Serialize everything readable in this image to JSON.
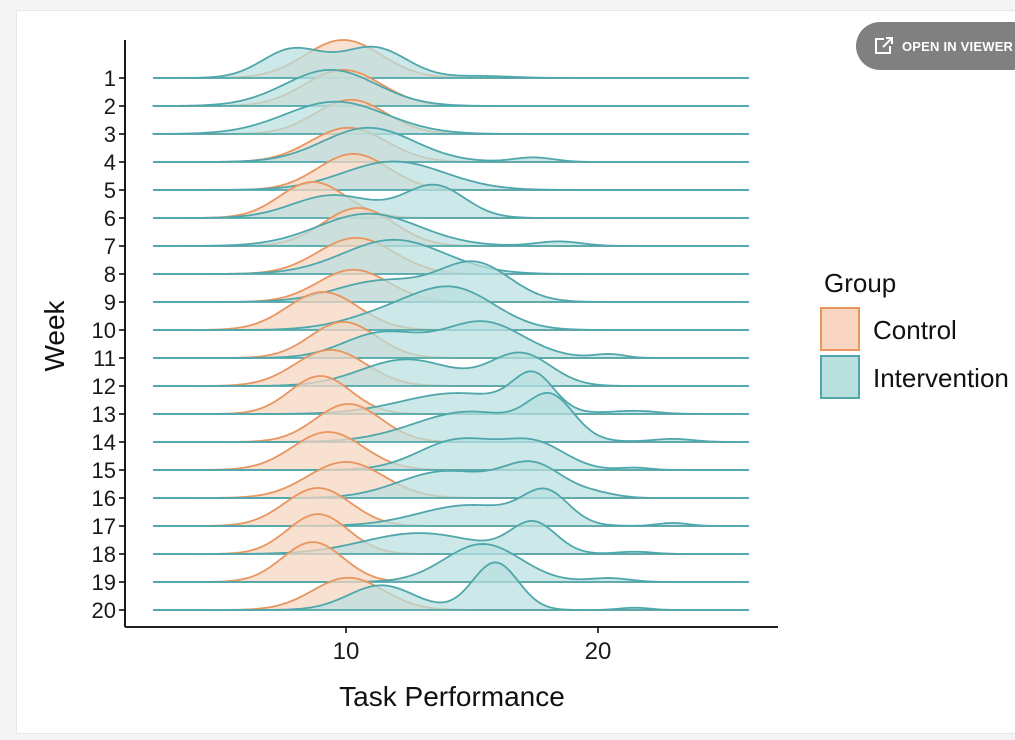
{
  "viewer_button": {
    "label": "OPEN IN VIEWER",
    "icon": "external-link-icon"
  },
  "chart_data": {
    "type": "ridgeline-density",
    "xlabel": "Task Performance",
    "ylabel": "Week",
    "xlim": [
      2.5,
      26
    ],
    "xticks": [
      10,
      20
    ],
    "grid": false,
    "weeks": [
      "1",
      "2",
      "3",
      "4",
      "5",
      "6",
      "7",
      "8",
      "9",
      "10",
      "11",
      "12",
      "13",
      "14",
      "15",
      "16",
      "17",
      "18",
      "19",
      "20"
    ],
    "legend": {
      "title": "Group",
      "position": "right",
      "entries": [
        "Control",
        "Intervention"
      ]
    },
    "colors": {
      "Control": {
        "fill": "#f7d5c0",
        "line": "#e8955f"
      },
      "Intervention": {
        "fill": "#b9dfdf",
        "line": "#4fa7ab"
      }
    },
    "series": [
      {
        "name": "Control",
        "peaks": [
          [
            [
              10,
              1.5,
              1.0
            ]
          ],
          [
            [
              10,
              1.5,
              0.95
            ]
          ],
          [
            [
              10.3,
              1.4,
              0.9
            ]
          ],
          [
            [
              10.2,
              1.5,
              0.9
            ]
          ],
          [
            [
              10.4,
              1.4,
              0.95
            ]
          ],
          [
            [
              8.8,
              1.3,
              0.95
            ]
          ],
          [
            [
              10.6,
              1.4,
              1.0
            ]
          ],
          [
            [
              10.5,
              1.5,
              0.95
            ]
          ],
          [
            [
              10.4,
              1.4,
              0.85
            ]
          ],
          [
            [
              9.2,
              1.4,
              1.0
            ]
          ],
          [
            [
              10,
              1.3,
              0.95
            ]
          ],
          [
            [
              9.5,
              1.4,
              0.95
            ]
          ],
          [
            [
              9.1,
              1.2,
              1.0
            ]
          ],
          [
            [
              10.2,
              1.3,
              1.0
            ]
          ],
          [
            [
              9.4,
              1.4,
              1.0
            ]
          ],
          [
            [
              10.1,
              1.5,
              0.95
            ]
          ],
          [
            [
              9.0,
              1.3,
              1.0
            ]
          ],
          [
            [
              9.0,
              1.2,
              1.05
            ]
          ],
          [
            [
              8.8,
              1.2,
              1.05
            ]
          ],
          [
            [
              10.2,
              1.4,
              0.85
            ]
          ]
        ]
      },
      {
        "name": "Intervention",
        "peaks": [
          [
            [
              8,
              1.2,
              0.75
            ],
            [
              11.2,
              1.3,
              0.8
            ],
            [
              15.5,
              1.2,
              0.05
            ]
          ],
          [
            [
              9.5,
              1.8,
              0.95
            ]
          ],
          [
            [
              9.7,
              2.0,
              0.85
            ]
          ],
          [
            [
              11.0,
              1.8,
              0.9
            ],
            [
              17.5,
              0.8,
              0.12
            ]
          ],
          [
            [
              12.0,
              2.0,
              0.75
            ]
          ],
          [
            [
              9.6,
              1.6,
              0.6
            ],
            [
              13.6,
              1.2,
              0.85
            ]
          ],
          [
            [
              11.0,
              2.0,
              0.85
            ],
            [
              18.5,
              0.9,
              0.12
            ]
          ],
          [
            [
              12.0,
              2.0,
              0.9
            ]
          ],
          [
            [
              11.5,
              1.8,
              0.55
            ],
            [
              15.2,
              1.4,
              1.0
            ]
          ],
          [
            [
              12.0,
              1.8,
              0.45
            ],
            [
              14.5,
              1.6,
              0.95
            ]
          ],
          [
            [
              11.5,
              1.5,
              0.65
            ],
            [
              15.5,
              1.6,
              0.95
            ],
            [
              20.5,
              0.6,
              0.1
            ]
          ],
          [
            [
              12.5,
              1.8,
              0.7
            ],
            [
              17.0,
              1.2,
              0.85
            ]
          ],
          [
            [
              14.5,
              2.2,
              0.55
            ],
            [
              17.5,
              0.8,
              0.9
            ],
            [
              21.5,
              0.9,
              0.08
            ]
          ],
          [
            [
              15.0,
              2.2,
              0.8
            ],
            [
              18.2,
              0.9,
              1.0
            ],
            [
              23,
              0.8,
              0.08
            ]
          ],
          [
            [
              14.6,
              1.6,
              0.8
            ],
            [
              17.6,
              1.2,
              0.65
            ],
            [
              21.5,
              0.6,
              0.06
            ]
          ],
          [
            [
              14.0,
              1.8,
              0.7
            ],
            [
              17.5,
              1.2,
              0.85
            ],
            [
              20,
              0.8,
              0.1
            ]
          ],
          [
            [
              15.0,
              2.0,
              0.55
            ],
            [
              18.0,
              0.9,
              0.8
            ],
            [
              23,
              0.6,
              0.08
            ]
          ],
          [
            [
              13.0,
              2.2,
              0.55
            ],
            [
              17.5,
              0.9,
              0.8
            ],
            [
              21.5,
              0.7,
              0.06
            ]
          ],
          [
            [
              15.5,
              1.5,
              1.0
            ],
            [
              20.5,
              0.8,
              0.1
            ]
          ],
          [
            [
              11.5,
              1.3,
              0.65
            ],
            [
              16.0,
              0.9,
              1.25
            ],
            [
              21.5,
              0.6,
              0.06
            ]
          ]
        ]
      }
    ]
  }
}
